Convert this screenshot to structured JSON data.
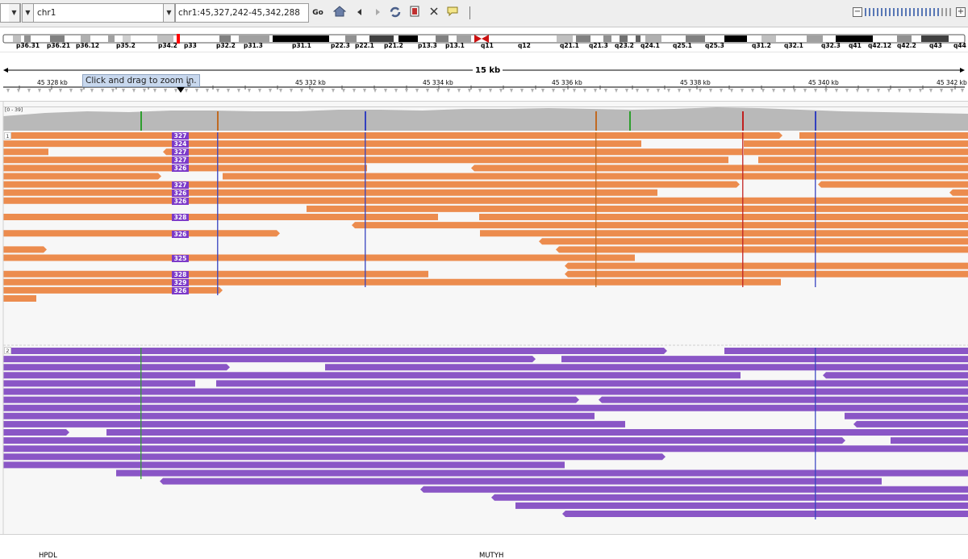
{
  "toolbar": {
    "chromosome": "chr1",
    "locus": "chr1:45,327,242-45,342,288",
    "go_label": "Go",
    "icons": [
      "home-icon",
      "back-icon",
      "forward-icon",
      "refresh-icon",
      "roi-icon",
      "resize-icon",
      "popup-text-icon"
    ],
    "zoom_level_fraction": 0.9,
    "zoom_minus": "−",
    "zoom_plus": "+"
  },
  "ideogram": {
    "bands": [
      "p36.31",
      "p36.21",
      "p36.12",
      "p35.2",
      "p34.2",
      "p33",
      "p32.2",
      "p31.3",
      "p31.1",
      "p22.3",
      "p22.1",
      "p21.2",
      "p13.3",
      "p13.1",
      "q11",
      "q12",
      "q21.1",
      "q21.3",
      "q23.2",
      "q24.1",
      "q25.1",
      "q25.3",
      "q31.2",
      "q32.1",
      "q32.3",
      "q41",
      "q42.12",
      "q42.2",
      "q43",
      "q44"
    ]
  },
  "ruler": {
    "span": "15 kb",
    "positions": [
      "45 328 kb",
      "45 332 kb",
      "45 334 kb",
      "45 336 kb",
      "45 338 kb",
      "45 340 kb",
      "45 342 kb"
    ],
    "tooltip": "Click and drag to zoom in.",
    "tooltip_tail": "b"
  },
  "tracks": {
    "coverage_range": "[0 - 39]",
    "group1_label": "1",
    "group2_label": "2",
    "insertion_labels": [
      "327",
      "324",
      "327",
      "327",
      "326",
      "327",
      "326",
      "326",
      "328",
      "326",
      "325",
      "328",
      "329",
      "326"
    ],
    "read_colors": {
      "group1": "#ec8c4e",
      "group2": "#8a56c6",
      "coverage": "#b9b9b9",
      "insertion": "#7c3ac9"
    }
  },
  "genes": {
    "names": [
      "HPDL",
      "MUTYH"
    ],
    "color": "#1b1ba8"
  }
}
